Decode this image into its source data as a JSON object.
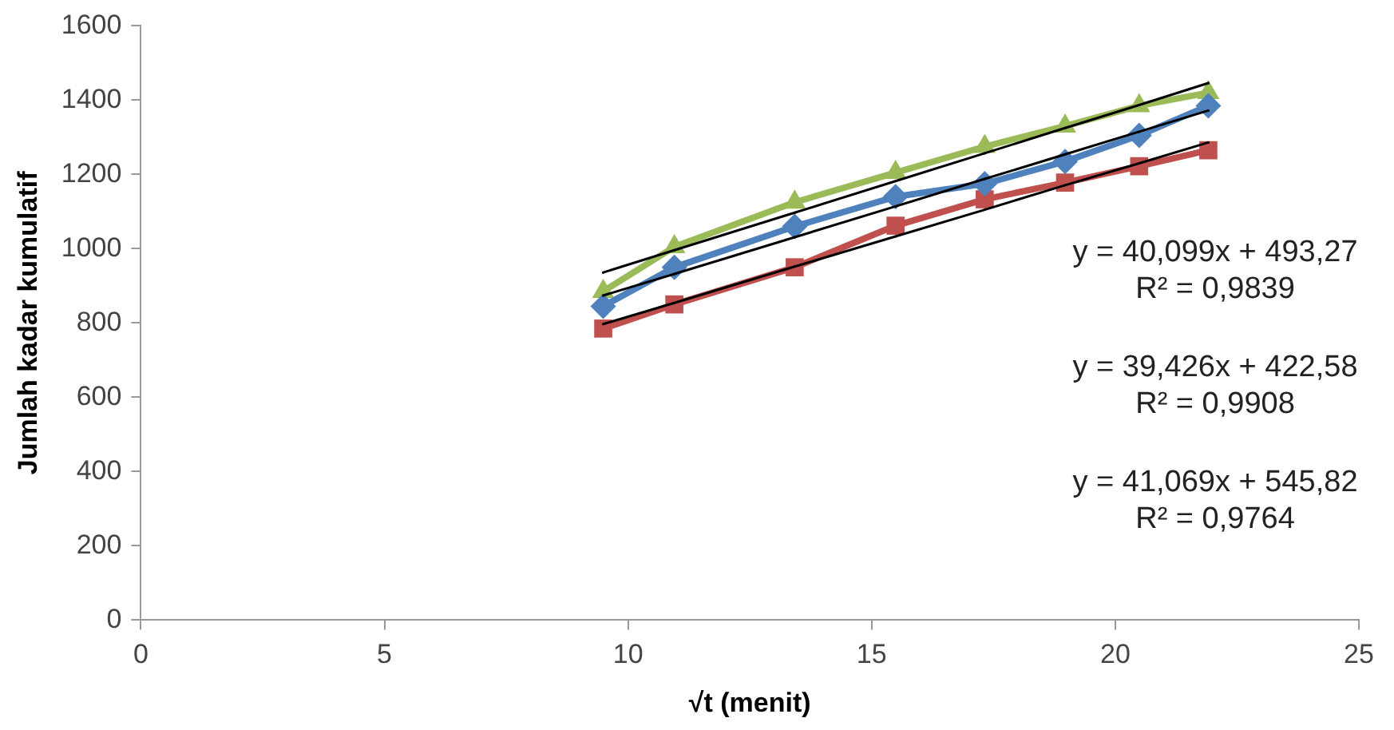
{
  "chart_data": {
    "type": "line",
    "xlabel": "√t (menit)",
    "ylabel": "Jumlah kadar kumulatif",
    "x": [
      9.49,
      10.95,
      13.42,
      15.49,
      17.32,
      18.97,
      20.49,
      21.91
    ],
    "series": [
      {
        "color": "#4f81bd",
        "marker": "diamond",
        "values": [
          845,
          950,
          1060,
          1140,
          1175,
          1235,
          1305,
          1385
        ]
      },
      {
        "color": "#c0504d",
        "marker": "square",
        "values": [
          785,
          850,
          950,
          1062,
          1133,
          1178,
          1222,
          1265
        ]
      },
      {
        "color": "#9bbb59",
        "marker": "triangle",
        "values": [
          885,
          1005,
          1125,
          1205,
          1275,
          1330,
          1385,
          1420
        ]
      },
      {
        "type": "line",
        "color": "#000000",
        "marker": "none",
        "values": [
          874,
          932,
          1031,
          1114,
          1188,
          1254,
          1315,
          1372
        ]
      },
      {
        "type": "line",
        "color": "#000000",
        "marker": "none",
        "values": [
          797,
          854,
          952,
          1033,
          1105,
          1171,
          1230,
          1286
        ]
      },
      {
        "type": "line",
        "color": "#000000",
        "marker": "none",
        "values": [
          936,
          996,
          1097,
          1182,
          1257,
          1325,
          1387,
          1446
        ]
      }
    ],
    "xlim": [
      0,
      25
    ],
    "xticks": [
      0,
      5,
      10,
      15,
      20,
      25
    ],
    "ylim": [
      0,
      1600
    ],
    "yticks": [
      0,
      200,
      400,
      600,
      800,
      1000,
      1200,
      1400,
      1600
    ],
    "grid": false,
    "legend": false,
    "annotations": [
      "y = 40,099x + 493,27",
      "R² = 0,9839",
      "y = 39,426x + 422,58",
      "R² = 0,9908",
      "y = 41,069x + 545,82",
      "R² = 0,9764"
    ]
  }
}
